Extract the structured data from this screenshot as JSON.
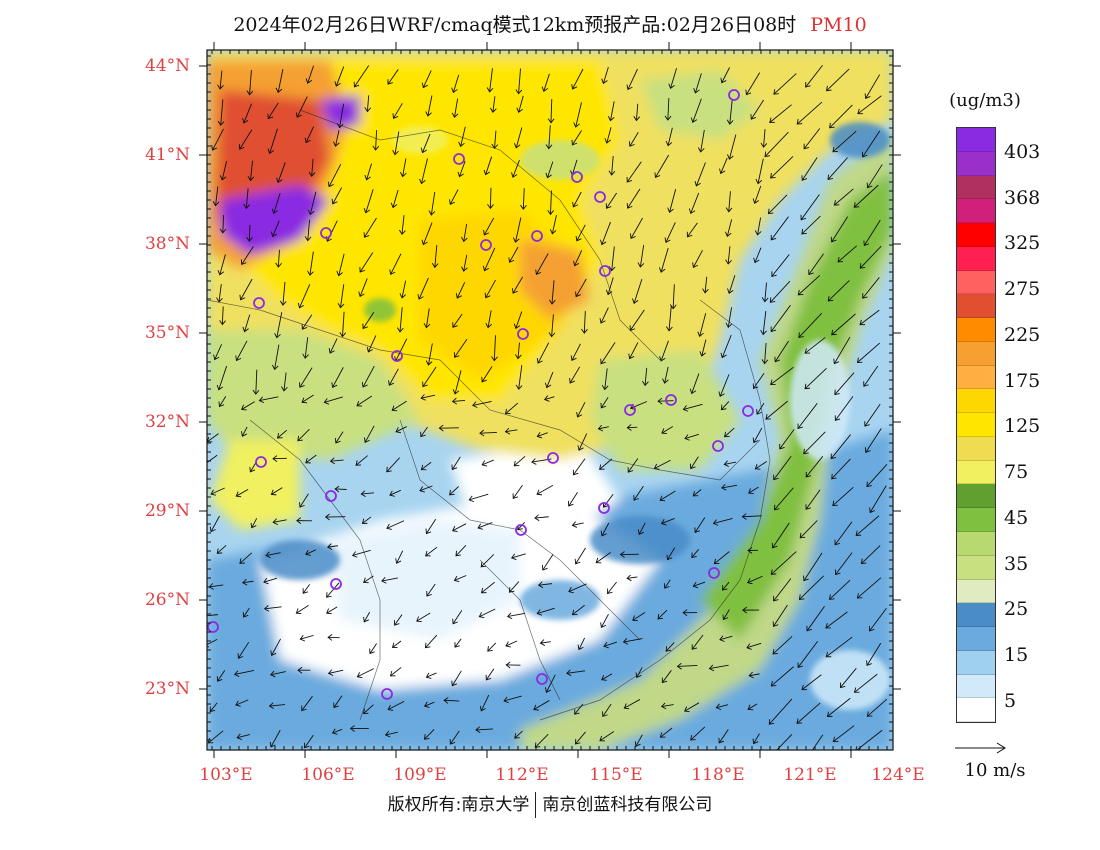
{
  "header": {
    "title": "2024年02月26日WRF/cmaq模式12km预报产品:02月26日08时",
    "species": "PM10"
  },
  "map": {
    "lat_ticks": [
      "44°N",
      "41°N",
      "38°N",
      "35°N",
      "32°N",
      "29°N",
      "26°N",
      "23°N"
    ],
    "lon_ticks": [
      "103°E",
      "106°E",
      "109°E",
      "112°E",
      "115°E",
      "118°E",
      "121°E",
      "124°E"
    ]
  },
  "legend": {
    "unit": "(ug/m3)",
    "labels": [
      "403",
      "368",
      "325",
      "275",
      "225",
      "175",
      "125",
      "75",
      "45",
      "35",
      "25",
      "15",
      "5"
    ],
    "colors": [
      "#8a2be2",
      "#9b30c8",
      "#b03060",
      "#d0207a",
      "#ff0000",
      "#ff2050",
      "#ff6060",
      "#e05030",
      "#ff8c00",
      "#f5a030",
      "#ffb040",
      "#ffd700",
      "#ffe600",
      "#f0dc50",
      "#f0f060",
      "#60a030",
      "#80c040",
      "#b8d870",
      "#c8e080",
      "#e0ecc0",
      "#4a8cc8",
      "#6aaade",
      "#a0d0f0",
      "#d0eafa",
      "#ffffff"
    ]
  },
  "vector_reference": {
    "label": "10 m/s"
  },
  "footer": {
    "left": "版权所有:南京大学",
    "right": "南京创蓝科技有限公司"
  }
}
